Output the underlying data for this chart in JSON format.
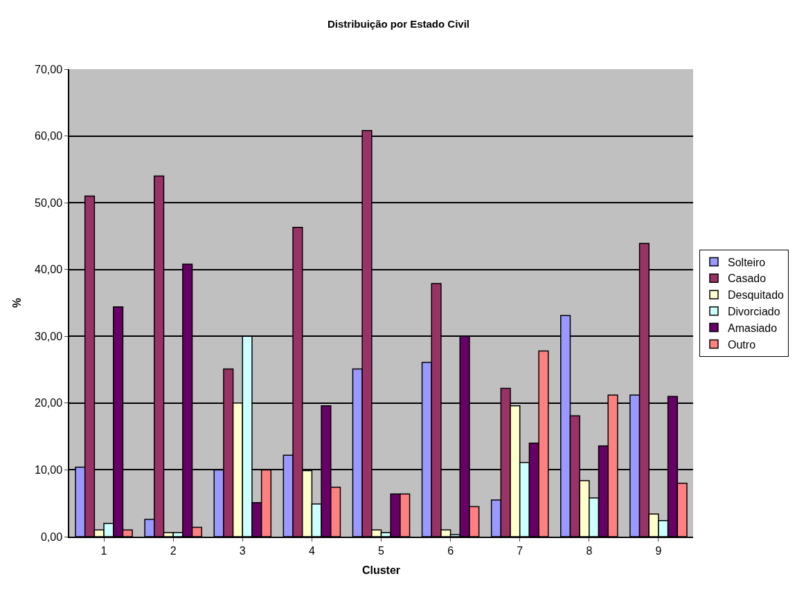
{
  "chart_data": {
    "type": "bar",
    "title": "Distribuição por Estado Civil",
    "xlabel": "Cluster",
    "ylabel": "%",
    "categories": [
      "1",
      "2",
      "3",
      "4",
      "5",
      "6",
      "7",
      "8",
      "9"
    ],
    "series": [
      {
        "name": "Solteiro",
        "color": "#9999ff",
        "values": [
          10.4,
          2.6,
          10.0,
          12.2,
          25.1,
          26.1,
          5.5,
          33.1,
          21.2
        ]
      },
      {
        "name": "Casado",
        "color": "#993366",
        "values": [
          51.0,
          54.0,
          25.1,
          46.3,
          60.8,
          37.9,
          22.2,
          18.1,
          43.9
        ]
      },
      {
        "name": "Desquitado",
        "color": "#ffffcc",
        "values": [
          1.0,
          0.6,
          20.0,
          9.9,
          1.0,
          1.0,
          19.6,
          8.4,
          3.4
        ]
      },
      {
        "name": "Divorciado",
        "color": "#ccffff",
        "values": [
          2.0,
          0.6,
          30.0,
          4.9,
          0.6,
          0.3,
          11.1,
          5.8,
          2.4
        ]
      },
      {
        "name": "Amasiado",
        "color": "#660066",
        "values": [
          34.4,
          40.8,
          5.1,
          19.6,
          6.4,
          30.0,
          14.0,
          13.6,
          21.0
        ]
      },
      {
        "name": "Outro",
        "color": "#ff8080",
        "values": [
          1.0,
          1.4,
          10.0,
          7.4,
          6.4,
          4.5,
          27.8,
          21.2,
          8.0
        ]
      }
    ],
    "ylim": [
      0,
      70
    ],
    "yticks": [
      {
        "value": 0,
        "label": "0,00"
      },
      {
        "value": 10,
        "label": "10,00"
      },
      {
        "value": 20,
        "label": "20,00"
      },
      {
        "value": 30,
        "label": "30,00"
      },
      {
        "value": 40,
        "label": "40,00"
      },
      {
        "value": 50,
        "label": "50,00"
      },
      {
        "value": 60,
        "label": "60,00"
      },
      {
        "value": 70,
        "label": "70,00"
      }
    ],
    "grid": "y",
    "legend": "right"
  }
}
